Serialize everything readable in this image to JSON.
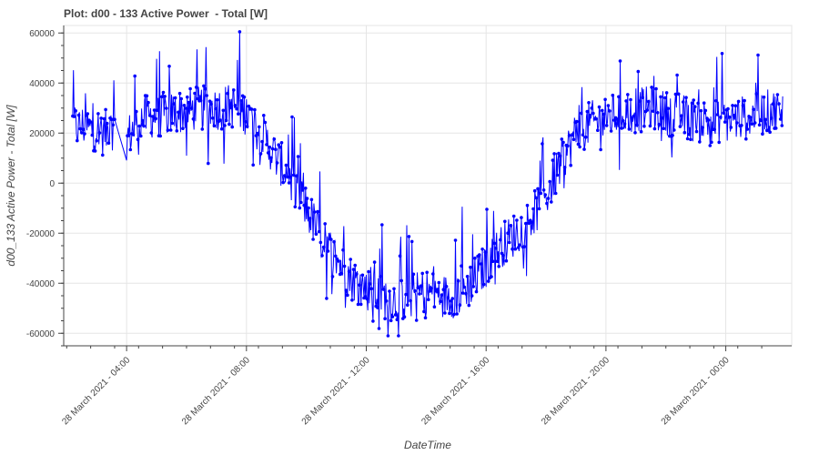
{
  "title": "Plot: d00 - 133 Active Power  - Total [W]",
  "chart_data": {
    "type": "line",
    "title": "Plot: d00 - 133 Active Power  - Total [W]",
    "xlabel": "DateTime",
    "ylabel": "d00_133 Active Power  - Total [W]",
    "x_range_hours": [
      1.9,
      26.2
    ],
    "ylim": [
      -65000,
      63000
    ],
    "yticks": [
      60000,
      40000,
      20000,
      0,
      -20000,
      -40000,
      -60000
    ],
    "ytick_labels": [
      "60000",
      "40000",
      "20000",
      "0",
      "-20000",
      "-40000",
      "-60000"
    ],
    "xticks_hours": [
      4,
      8,
      12,
      16,
      20,
      24
    ],
    "xtick_labels": [
      "28 March 2021 - 04:00",
      "28 March 2021 - 08:00",
      "28 March 2021 - 12:00",
      "28 March 2021 - 16:00",
      "28 March 2021 - 20:00",
      "28 March 2021 - 00:00"
    ],
    "grid": true,
    "color": "#0000ff",
    "series": [
      {
        "x_hours": [
          2.2,
          2.4,
          2.6,
          2.8,
          3.0,
          3.2,
          3.4,
          3.6,
          4.0,
          4.5,
          5.0,
          5.5,
          6.0,
          6.5,
          7.0,
          7.5,
          8.0,
          8.5,
          9.0,
          9.5,
          10.0,
          10.5,
          11.0,
          11.5,
          12.0,
          12.5,
          13.0,
          13.5,
          14.0,
          14.5,
          15.0,
          15.5,
          16.0,
          16.5,
          17.0,
          17.5,
          18.0,
          18.5,
          19.0,
          19.5,
          20.0,
          20.5,
          21.0,
          21.5,
          22.0,
          22.5,
          23.0,
          23.5,
          24.0,
          24.5,
          25.0,
          25.5,
          25.9
        ],
        "y": [
          24000,
          22000,
          23000,
          21000,
          22000,
          20000,
          21000,
          19000,
          18000,
          26000,
          27000,
          28000,
          29000,
          30000,
          30000,
          31000,
          28000,
          20000,
          10000,
          2000,
          -10000,
          -22000,
          -30000,
          -38000,
          -42000,
          -45000,
          -47000,
          -45000,
          -43000,
          -45000,
          -45000,
          -40000,
          -33000,
          -25000,
          -20000,
          -14000,
          -5000,
          8000,
          20000,
          24000,
          26000,
          28000,
          29000,
          30000,
          28000,
          27000,
          25000,
          25000,
          25000,
          26000,
          27000,
          29000,
          28000
        ],
        "noise_amplitude": 9000,
        "spike_amplitude": 28000
      }
    ]
  }
}
